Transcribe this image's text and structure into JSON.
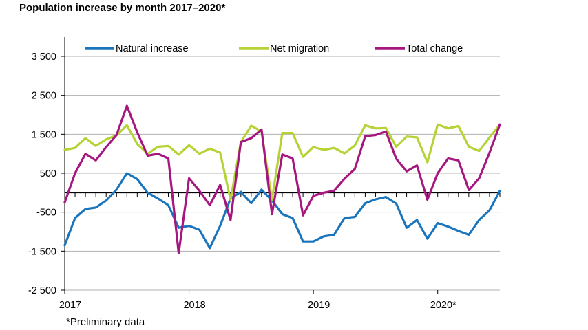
{
  "chart_data": {
    "type": "line",
    "title": "Population increase by month 2017–2020*",
    "footnote": "*Preliminary data",
    "xlabel": "",
    "ylabel": "",
    "ylim": [
      -2500,
      3500
    ],
    "yticks": [
      3500,
      2500,
      1500,
      500,
      -500,
      -1500,
      -2500
    ],
    "ytick_labels": [
      "3 500",
      "2 500",
      "1 500",
      "500",
      "-500",
      "-1 500",
      "-2 500"
    ],
    "x_labels": [
      "2017",
      "2018",
      "2019",
      "2020*"
    ],
    "months_per_label": 12,
    "grid": "horizontal",
    "legend_position": "top",
    "colors": {
      "axis": "#000000",
      "grid": "#b0b0b0"
    },
    "series": [
      {
        "name": "Natural increase",
        "color": "#1a75bc",
        "values": [
          -1350,
          -650,
          -420,
          -380,
          -200,
          80,
          500,
          350,
          0,
          -150,
          -320,
          -900,
          -850,
          -950,
          -1420,
          -850,
          -150,
          20,
          -270,
          80,
          -200,
          -550,
          -650,
          -1250,
          -1250,
          -1120,
          -1080,
          -650,
          -620,
          -270,
          -170,
          -110,
          -280,
          -900,
          -700,
          -1180,
          -780,
          -870,
          -980,
          -1080,
          -700,
          -450,
          50
        ]
      },
      {
        "name": "Net migration",
        "color": "#b5d334",
        "values": [
          1100,
          1150,
          1400,
          1200,
          1370,
          1470,
          1730,
          1250,
          1000,
          1180,
          1200,
          980,
          1220,
          1000,
          1130,
          1030,
          -180,
          1300,
          1720,
          1570,
          -180,
          1530,
          1530,
          920,
          1170,
          1100,
          1150,
          1010,
          1210,
          1730,
          1650,
          1660,
          1180,
          1440,
          1420,
          780,
          1750,
          1650,
          1710,
          1180,
          1070,
          1420,
          1750
        ]
      },
      {
        "name": "Total change",
        "color": "#a5177e",
        "values": [
          -250,
          500,
          1000,
          830,
          1170,
          1480,
          2230,
          1550,
          950,
          1000,
          880,
          -1550,
          370,
          50,
          -320,
          200,
          -700,
          1300,
          1400,
          1620,
          -550,
          980,
          880,
          -580,
          -80,
          0,
          50,
          360,
          610,
          1450,
          1480,
          1570,
          870,
          550,
          700,
          -180,
          500,
          880,
          830,
          70,
          370,
          1030,
          1750
        ]
      }
    ]
  }
}
